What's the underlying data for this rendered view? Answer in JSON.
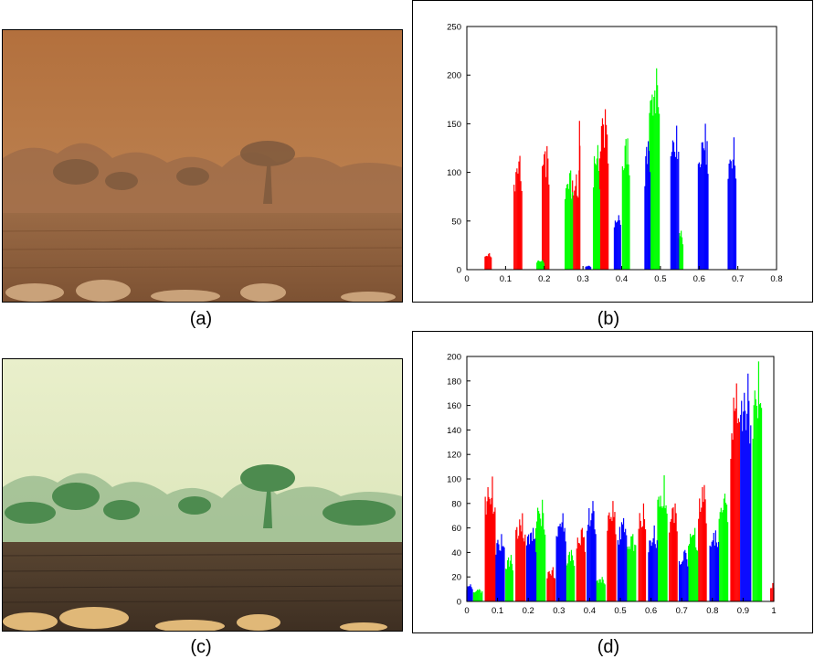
{
  "captions": {
    "a": "(a)",
    "b": "(b)",
    "c": "(c)",
    "d": "(d)"
  },
  "photos": {
    "a": {
      "description_icon": "dusty-desert-photo-icon",
      "sky": "#b8763f",
      "ground": "#8a5a3a",
      "trees": "#7a5a3f"
    },
    "c": {
      "description_icon": "enhanced-desert-photo-icon",
      "sky": "#e6edc6",
      "ground": "#4b3a2a",
      "trees": "#4f8a4a"
    }
  },
  "colors": {
    "red": "#ff0000",
    "green": "#00ff00",
    "blue": "#0000ff"
  },
  "chart_data": [
    {
      "type": "bar",
      "id": "b",
      "xlim": [
        0,
        0.8
      ],
      "ylim": [
        0,
        250
      ],
      "xticks": [
        "0",
        "0.1",
        "0.2",
        "0.3",
        "0.4",
        "0.5",
        "0.6",
        "0.7",
        "0.8"
      ],
      "yticks": [
        "0",
        "50",
        "100",
        "150",
        "200",
        "250"
      ],
      "grid": false,
      "series": [
        {
          "color": "red",
          "clusters": [
            [
              0.047,
              0.063,
              17
            ],
            [
              0.122,
              0.142,
              117
            ],
            [
              0.195,
              0.212,
              127
            ],
            [
              0.268,
              0.288,
              98
            ],
            [
              0.29,
              0.292,
              153
            ],
            [
              0.343,
              0.365,
              165
            ]
          ]
        },
        {
          "color": "green",
          "clusters": [
            [
              0.181,
              0.199,
              10
            ],
            [
              0.254,
              0.273,
              102
            ],
            [
              0.327,
              0.343,
              128
            ],
            [
              0.402,
              0.42,
              135
            ],
            [
              0.472,
              0.497,
              207
            ],
            [
              0.545,
              0.558,
              40
            ]
          ]
        },
        {
          "color": "blue",
          "clusters": [
            [
              0.307,
              0.32,
              4
            ],
            [
              0.381,
              0.397,
              56
            ],
            [
              0.46,
              0.473,
              132
            ],
            [
              0.527,
              0.547,
              148
            ],
            [
              0.598,
              0.623,
              150
            ],
            [
              0.675,
              0.695,
              136
            ]
          ]
        }
      ]
    },
    {
      "type": "bar",
      "id": "d",
      "xlim": [
        0,
        1
      ],
      "ylim": [
        0,
        200
      ],
      "xticks": [
        "0",
        "0.1",
        "0.2",
        "0.3",
        "0.4",
        "0.5",
        "0.6",
        "0.7",
        "0.8",
        "0.9",
        "1"
      ],
      "yticks": [
        "0",
        "20",
        "40",
        "60",
        "80",
        "100",
        "120",
        "140",
        "160",
        "180",
        "200"
      ],
      "grid": false,
      "series": [
        {
          "color": "red",
          "clusters": [
            [
              0.06,
              0.092,
              102
            ],
            [
              0.16,
              0.19,
              72
            ],
            [
              0.262,
              0.287,
              28
            ],
            [
              0.358,
              0.385,
              60
            ],
            [
              0.458,
              0.485,
              82
            ],
            [
              0.56,
              0.582,
              80
            ],
            [
              0.66,
              0.685,
              80
            ],
            [
              0.755,
              0.78,
              95
            ],
            [
              0.86,
              0.888,
              178
            ],
            [
              0.99,
              1.0,
              15
            ]
          ]
        },
        {
          "color": "green",
          "clusters": [
            [
              0.022,
              0.05,
              10
            ],
            [
              0.127,
              0.15,
              38
            ],
            [
              0.225,
              0.255,
              83
            ],
            [
              0.322,
              0.35,
              42
            ],
            [
              0.42,
              0.45,
              20
            ],
            [
              0.52,
              0.55,
              55
            ],
            [
              0.622,
              0.652,
              103
            ],
            [
              0.722,
              0.752,
              60
            ],
            [
              0.822,
              0.85,
              88
            ],
            [
              0.932,
              0.96,
              196
            ]
          ]
        },
        {
          "color": "blue",
          "clusters": [
            [
              0.0,
              0.018,
              14
            ],
            [
              0.095,
              0.122,
              55
            ],
            [
              0.195,
              0.225,
              60
            ],
            [
              0.292,
              0.322,
              72
            ],
            [
              0.392,
              0.42,
              82
            ],
            [
              0.492,
              0.52,
              68
            ],
            [
              0.592,
              0.62,
              62
            ],
            [
              0.692,
              0.72,
              42
            ],
            [
              0.792,
              0.82,
              58
            ],
            [
              0.892,
              0.925,
              186
            ]
          ]
        }
      ]
    }
  ]
}
